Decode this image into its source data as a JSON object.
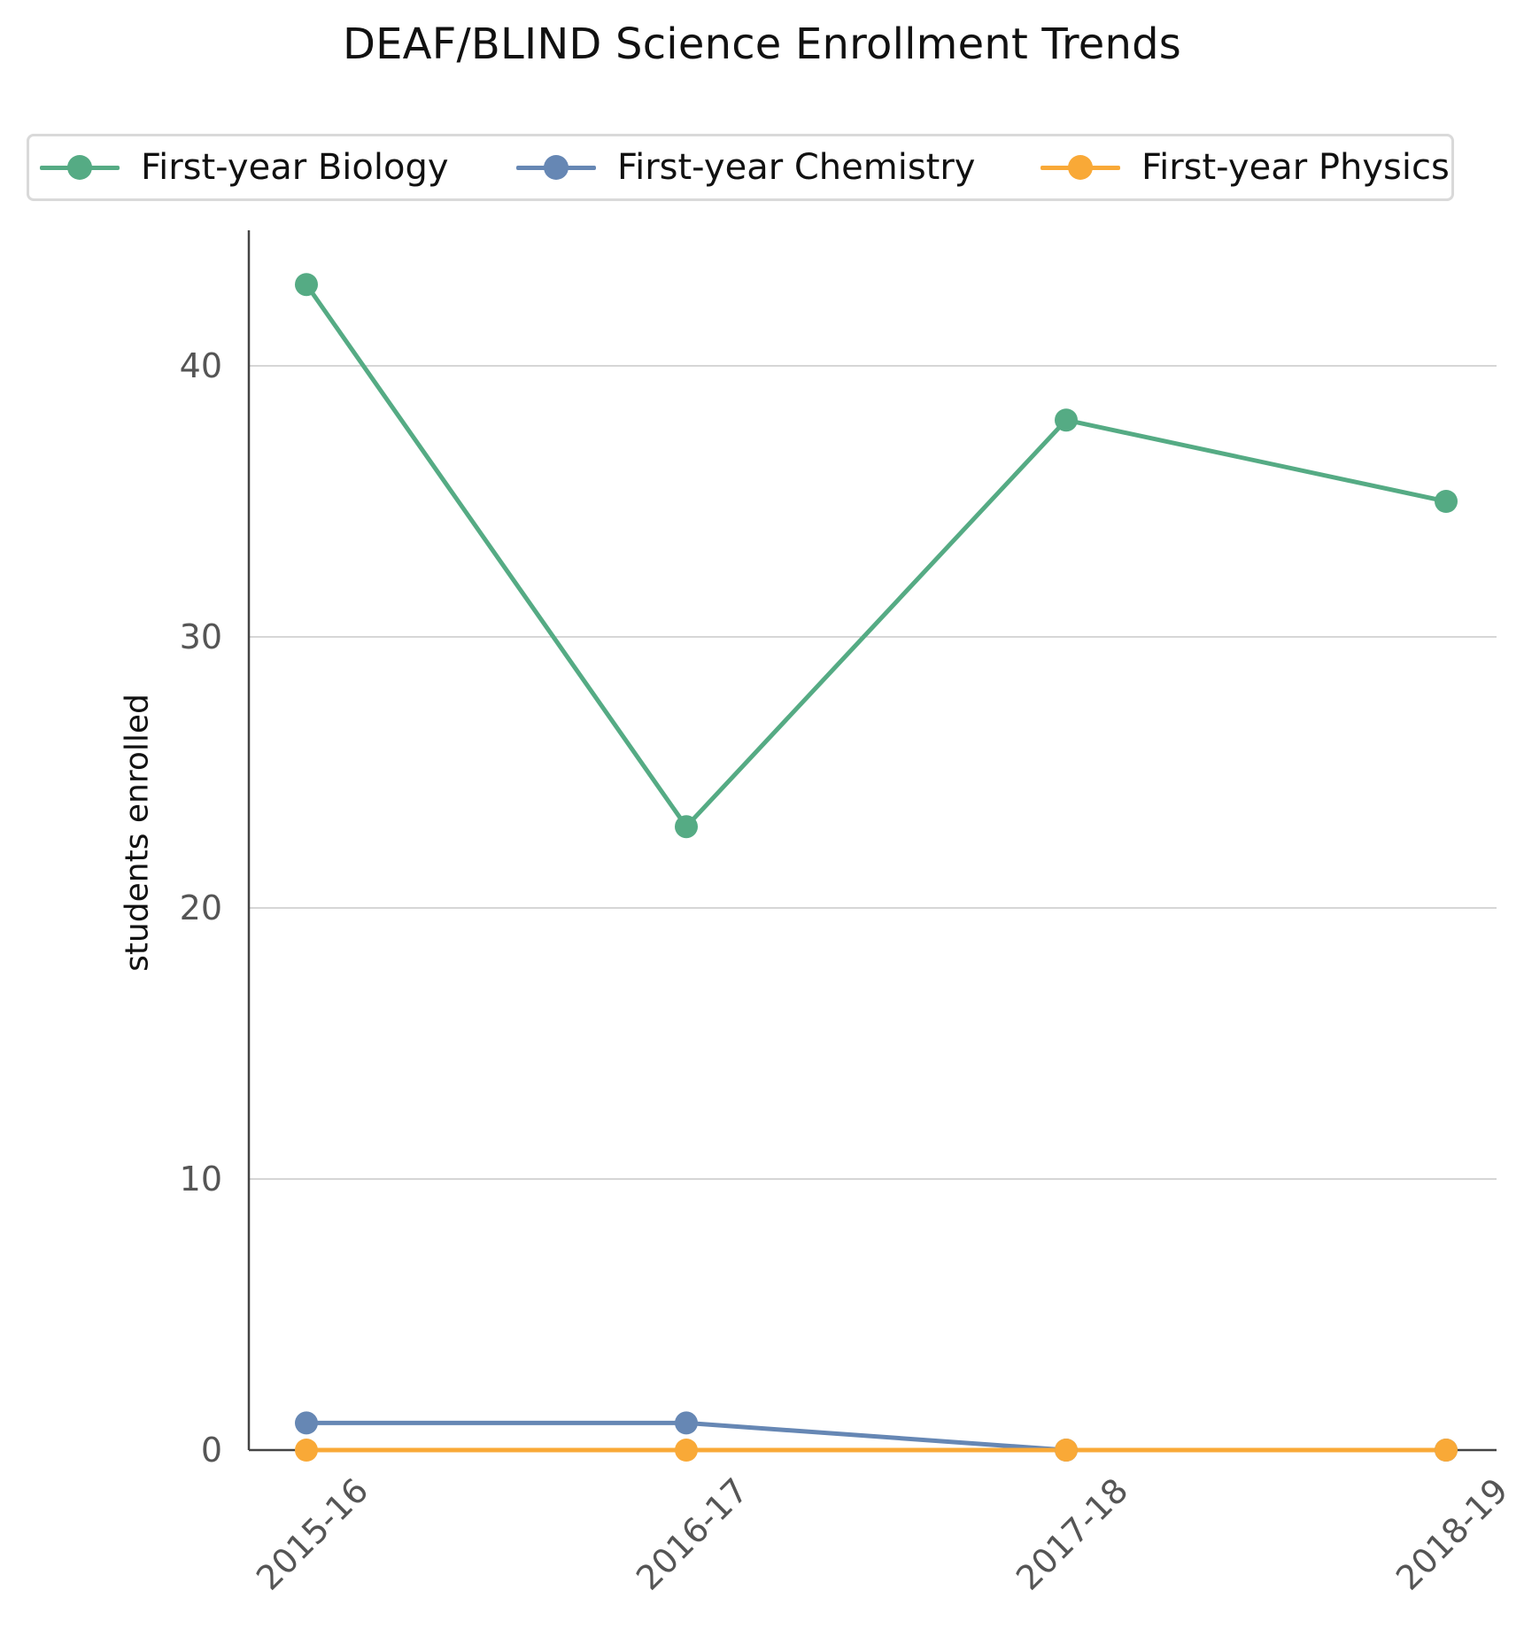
{
  "chart_data": {
    "type": "line",
    "title": "DEAF/BLIND Science Enrollment Trends",
    "xlabel": "",
    "ylabel": "students enrolled",
    "categories": [
      "2015-16",
      "2016-17",
      "2017-18",
      "2018-19"
    ],
    "ylim": [
      0,
      45
    ],
    "yticks": [
      0,
      10,
      20,
      30,
      40
    ],
    "grid": "horizontal",
    "legend_position": "top",
    "series": [
      {
        "name": "First-year Biology",
        "values": [
          43,
          23,
          38,
          35
        ],
        "color": "#55ab84"
      },
      {
        "name": "First-year Chemistry",
        "values": [
          1,
          1,
          0,
          0
        ],
        "color": "#6687b4"
      },
      {
        "name": "First-year Physics",
        "values": [
          0,
          0,
          0,
          0
        ],
        "color": "#f9a937"
      }
    ]
  }
}
